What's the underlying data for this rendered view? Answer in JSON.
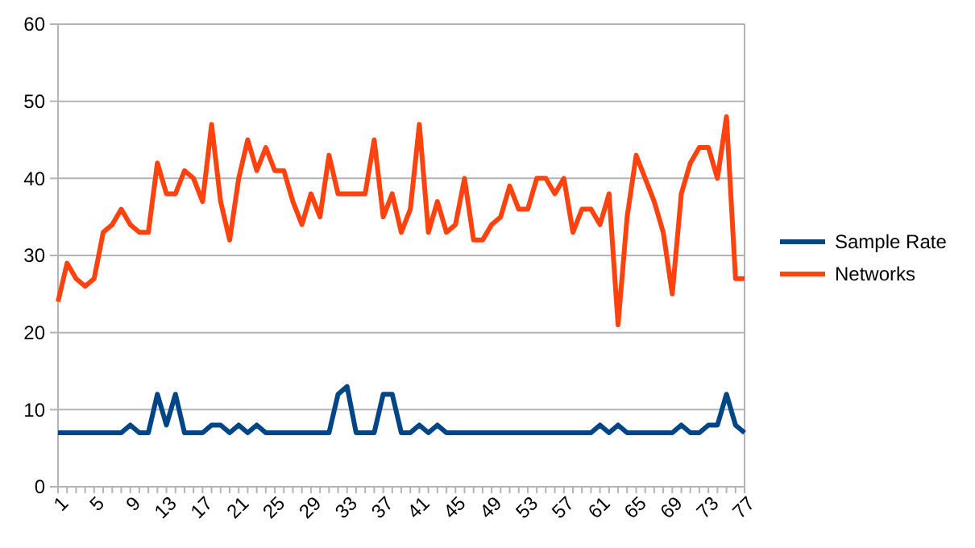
{
  "chart_data": {
    "type": "line",
    "categories": [
      "1",
      null,
      null,
      null,
      "5",
      null,
      null,
      null,
      "9",
      null,
      null,
      null,
      "13",
      null,
      null,
      null,
      "17",
      null,
      null,
      null,
      "21",
      null,
      null,
      null,
      "25",
      null,
      null,
      null,
      "29",
      null,
      null,
      null,
      "33",
      null,
      null,
      null,
      "37",
      null,
      null,
      null,
      "41",
      null,
      null,
      null,
      "45",
      null,
      null,
      null,
      "49",
      null,
      null,
      null,
      "53",
      null,
      null,
      null,
      "57",
      null,
      null,
      null,
      "61",
      null,
      null,
      null,
      "65",
      null,
      null,
      null,
      "69",
      null,
      null,
      null,
      "73",
      null,
      null,
      null,
      "77"
    ],
    "series": [
      {
        "name": "Sample Rate",
        "color": "#004586",
        "values": [
          7,
          7,
          7,
          7,
          7,
          7,
          7,
          7,
          8,
          7,
          7,
          12,
          8,
          12,
          7,
          7,
          7,
          8,
          8,
          7,
          8,
          7,
          8,
          7,
          7,
          7,
          7,
          7,
          7,
          7,
          7,
          12,
          13,
          7,
          7,
          7,
          12,
          12,
          7,
          7,
          8,
          7,
          8,
          7,
          7,
          7,
          7,
          7,
          7,
          7,
          7,
          7,
          7,
          7,
          7,
          7,
          7,
          7,
          7,
          7,
          8,
          7,
          8,
          7,
          7,
          7,
          7,
          7,
          7,
          8,
          7,
          7,
          8,
          8,
          12,
          8,
          7
        ]
      },
      {
        "name": "Networks",
        "color": "#ff420e",
        "values": [
          24,
          29,
          27,
          26,
          27,
          33,
          34,
          36,
          34,
          33,
          33,
          42,
          38,
          38,
          41,
          40,
          37,
          47,
          37,
          32,
          40,
          45,
          41,
          44,
          41,
          41,
          37,
          34,
          38,
          35,
          43,
          38,
          38,
          38,
          38,
          45,
          35,
          38,
          33,
          36,
          47,
          33,
          37,
          33,
          34,
          40,
          32,
          32,
          34,
          35,
          39,
          36,
          36,
          40,
          40,
          38,
          40,
          33,
          36,
          36,
          34,
          38,
          21,
          35,
          43,
          40,
          37,
          33,
          25,
          38,
          42,
          44,
          44,
          40,
          48,
          27,
          27
        ]
      }
    ],
    "ylim": [
      0,
      60
    ],
    "yticks": [
      0,
      10,
      20,
      30,
      40,
      50,
      60
    ],
    "grid": "y",
    "legend": "right",
    "marker": "none",
    "line_style": "solid"
  }
}
